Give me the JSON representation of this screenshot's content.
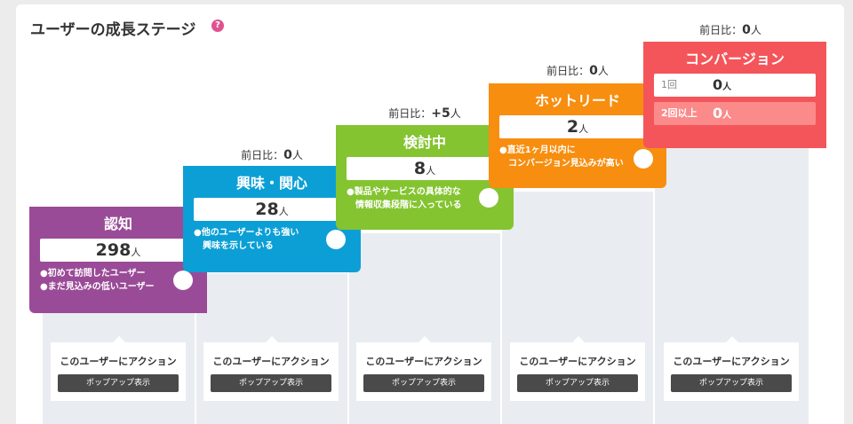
{
  "title": "ユーザーの成長ステージ",
  "help_glyph": "?",
  "colors": {
    "awareness": "#9a4b97",
    "interest": "#0c9fd6",
    "consideration": "#84c431",
    "hotlead": "#f78e10",
    "conversion": "#f4555a"
  },
  "stages": [
    {
      "name": "認知",
      "count": "298",
      "unit": "人",
      "notes": [
        "●初めて訪問したユーザー",
        "●まだ見込みの低いユーザー"
      ],
      "action_text": "このユーザーにアクション",
      "action_button": "ポップアップ表示"
    },
    {
      "name": "興味・関心",
      "count": "28",
      "unit": "人",
      "diff_label": "前日比：",
      "diff_value": "0",
      "diff_unit": "人",
      "notes": [
        "●他のユーザーよりも強い",
        "　興味を示している"
      ],
      "action_text": "このユーザーにアクション",
      "action_button": "ポップアップ表示"
    },
    {
      "name": "検討中",
      "count": "8",
      "unit": "人",
      "diff_label": "前日比：",
      "diff_value": "+5",
      "diff_unit": "人",
      "notes": [
        "●製品やサービスの具体的な",
        "　情報収集段階に入っている"
      ],
      "action_text": "このユーザーにアクション",
      "action_button": "ポップアップ表示"
    },
    {
      "name": "ホットリード",
      "count": "2",
      "unit": "人",
      "diff_label": "前日比：",
      "diff_value": "0",
      "diff_unit": "人",
      "notes": [
        "●直近1ヶ月以内に",
        "　コンバージョン見込みが高い"
      ],
      "action_text": "このユーザーにアクション",
      "action_button": "ポップアップ表示"
    },
    {
      "name": "コンバージョン",
      "diff_label": "前日比：",
      "diff_value": "0",
      "diff_unit": "人",
      "rows": [
        {
          "label": "1回",
          "value": "0",
          "unit": "人"
        },
        {
          "label": "2回以上",
          "value": "0",
          "unit": "人"
        }
      ],
      "action_text": "このユーザーにアクション",
      "action_button": "ポップアップ表示"
    }
  ]
}
